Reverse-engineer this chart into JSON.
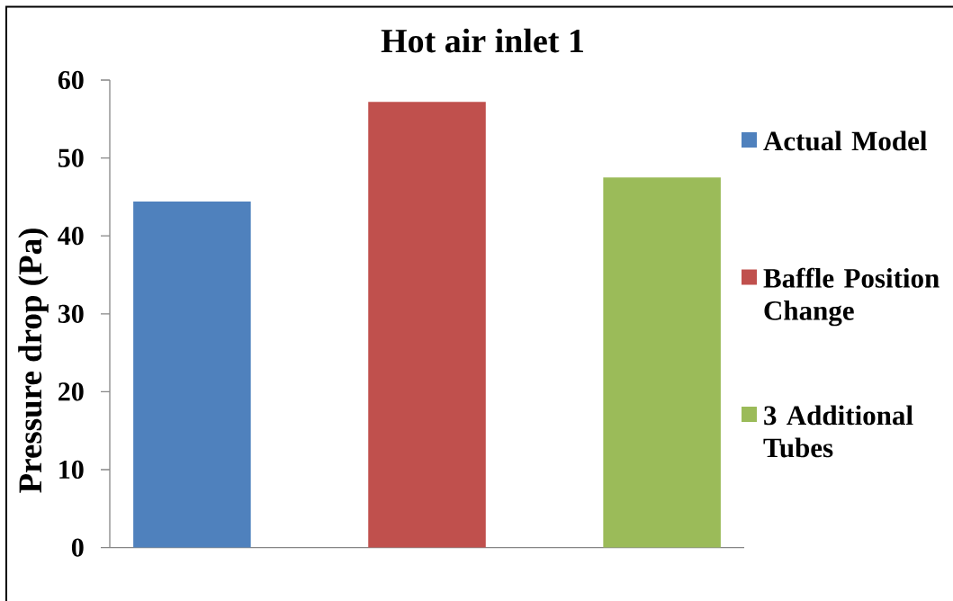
{
  "chart_data": {
    "type": "bar",
    "title": "Hot air inlet 1",
    "ylabel": "Pressure drop (Pa)",
    "categories": [
      null,
      null,
      null
    ],
    "series": [
      {
        "name": "Actual Model",
        "color": "#4f81bd",
        "values": [
          44.4,
          null,
          null
        ]
      },
      {
        "name": "Baffle Position Change",
        "color": "#c0504d",
        "values": [
          null,
          57.2,
          null
        ]
      },
      {
        "name": "3 Additional Tubes",
        "color": "#9bbb59",
        "values": [
          null,
          null,
          47.5
        ]
      }
    ],
    "ylim": [
      0,
      60
    ],
    "yticks": [
      0,
      10,
      20,
      30,
      40,
      50,
      60
    ],
    "legend": "right"
  }
}
